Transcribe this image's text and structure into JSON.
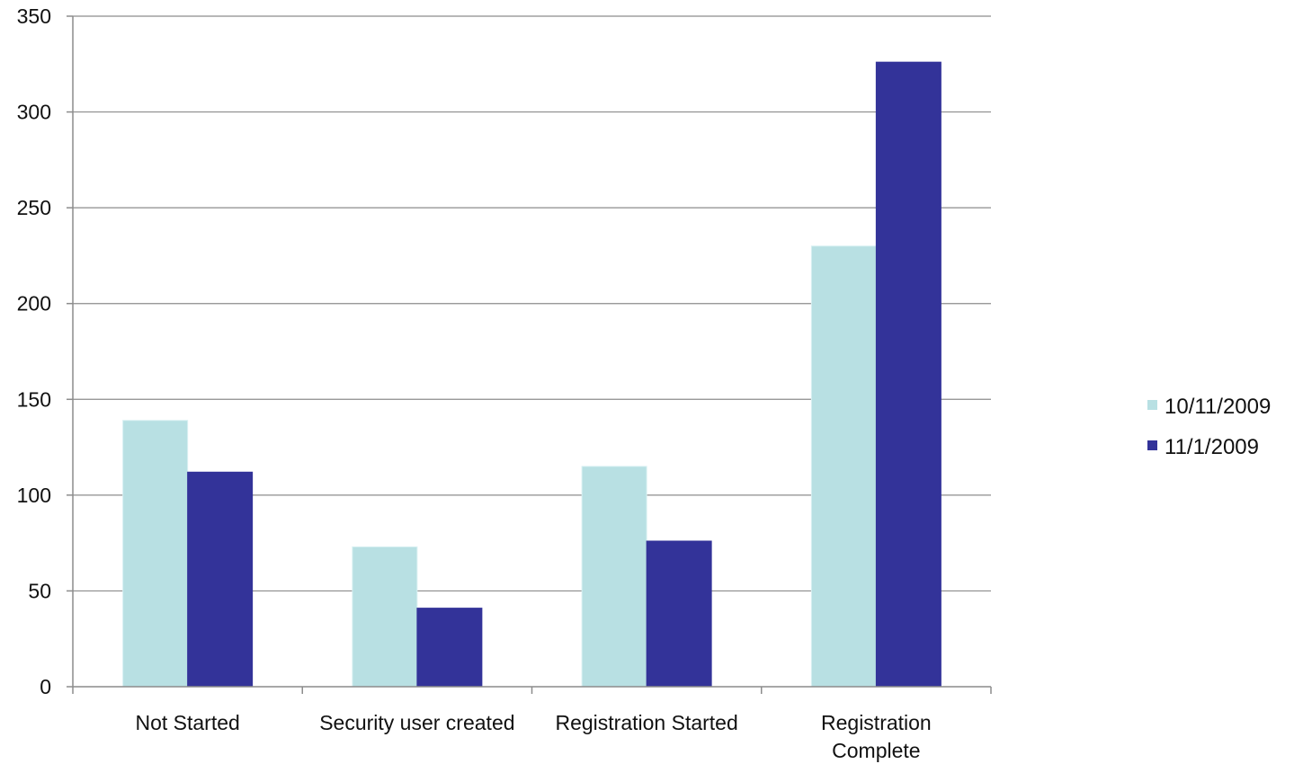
{
  "chart_data": {
    "type": "bar",
    "categories": [
      [
        "Not Started"
      ],
      [
        "Security user created"
      ],
      [
        "Registration Started"
      ],
      [
        "Registration",
        "Complete"
      ]
    ],
    "series": [
      {
        "name": "10/11/2009",
        "color": "#b8e0e3",
        "values": [
          139,
          73,
          115,
          230
        ]
      },
      {
        "name": "11/1/2009",
        "color": "#333399",
        "values": [
          112,
          41,
          76,
          326
        ]
      }
    ],
    "ylim": [
      0,
      350
    ],
    "yticks": [
      0,
      50,
      100,
      150,
      200,
      250,
      300,
      350
    ],
    "grid": true,
    "legend": "right",
    "title": "",
    "xlabel": "",
    "ylabel": ""
  }
}
